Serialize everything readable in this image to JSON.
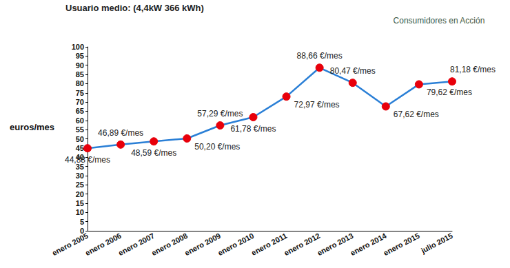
{
  "chart_data": {
    "type": "line",
    "title": "Usuario medio: (4,4kW 366 kWh)",
    "y_label": "euros/mes",
    "annotations": [
      "Consumidores en Acción"
    ],
    "categories": [
      "enero 2005",
      "enero 2006",
      "enero 2007",
      "enero 2008",
      "enero 2009",
      "enero 2010",
      "enero 2011",
      "enero 2012",
      "enero 2013",
      "enero 2014",
      "enero 2015",
      "julio 2015"
    ],
    "values": [
      44.88,
      46.89,
      48.59,
      50.2,
      57.29,
      61.78,
      72.97,
      88.66,
      80.47,
      67.62,
      79.62,
      81.18
    ],
    "value_labels": [
      "44,88 €/mes",
      "46,89 €/mes",
      "48,59 €/mes",
      "50,20 €/mes",
      "57,29 €/mes",
      "61,78 €/mes",
      "72,97 €/mes",
      "88,66 €/mes",
      "80,47 €/mes",
      "67,62 €/mes",
      "79,62 €/mes",
      "81,18 €/mes"
    ],
    "color": "#2a7fd6",
    "marker": "circle",
    "line_style": "solid",
    "ylim": [
      0,
      100
    ],
    "yticks": [
      0,
      5,
      10,
      15,
      20,
      25,
      30,
      35,
      40,
      45,
      50,
      55,
      60,
      65,
      70,
      75,
      80,
      85,
      90,
      95,
      100
    ],
    "grid": false,
    "data_labels": true
  }
}
